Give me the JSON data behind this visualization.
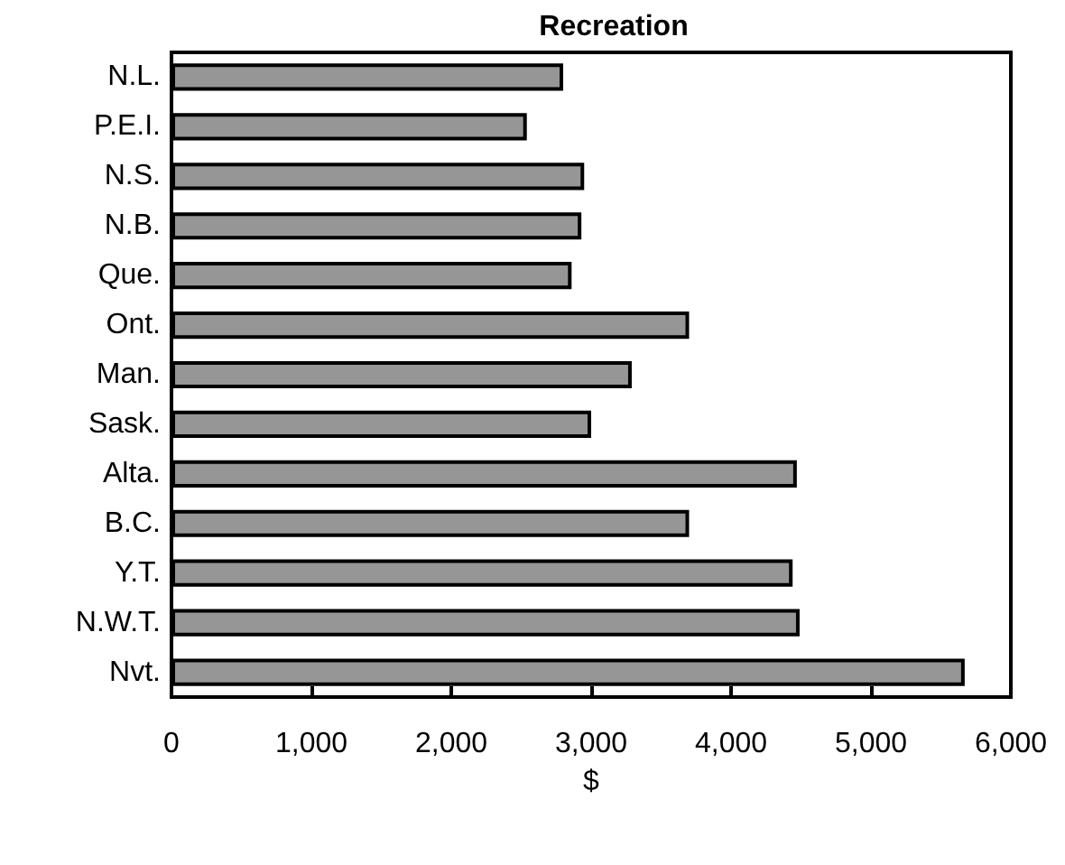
{
  "chart_data": {
    "type": "bar",
    "orientation": "horizontal",
    "title": "Recreation",
    "xlabel": "$",
    "categories": [
      "N.L.",
      "P.E.I.",
      "N.S.",
      "N.B.",
      "Que.",
      "Ont.",
      "Man.",
      "Sask.",
      "Alta.",
      "B.C.",
      "Y.T.",
      "N.W.T.",
      "Nvt."
    ],
    "values": [
      2800,
      2540,
      2950,
      2930,
      2860,
      3700,
      3290,
      3000,
      4470,
      3700,
      4440,
      4490,
      5670
    ],
    "color": "#969696",
    "xlim": [
      0,
      6000
    ],
    "xticks": [
      0,
      {
        "value": 1000,
        "label": "1,000"
      },
      {
        "value": 2000,
        "label": "2,000"
      },
      {
        "value": 3000,
        "label": "3,000"
      },
      {
        "value": 4000,
        "label": "4,000"
      },
      {
        "value": 5000,
        "label": "5,000"
      },
      {
        "value": 6000,
        "label": "6,000"
      }
    ],
    "grid": false
  }
}
